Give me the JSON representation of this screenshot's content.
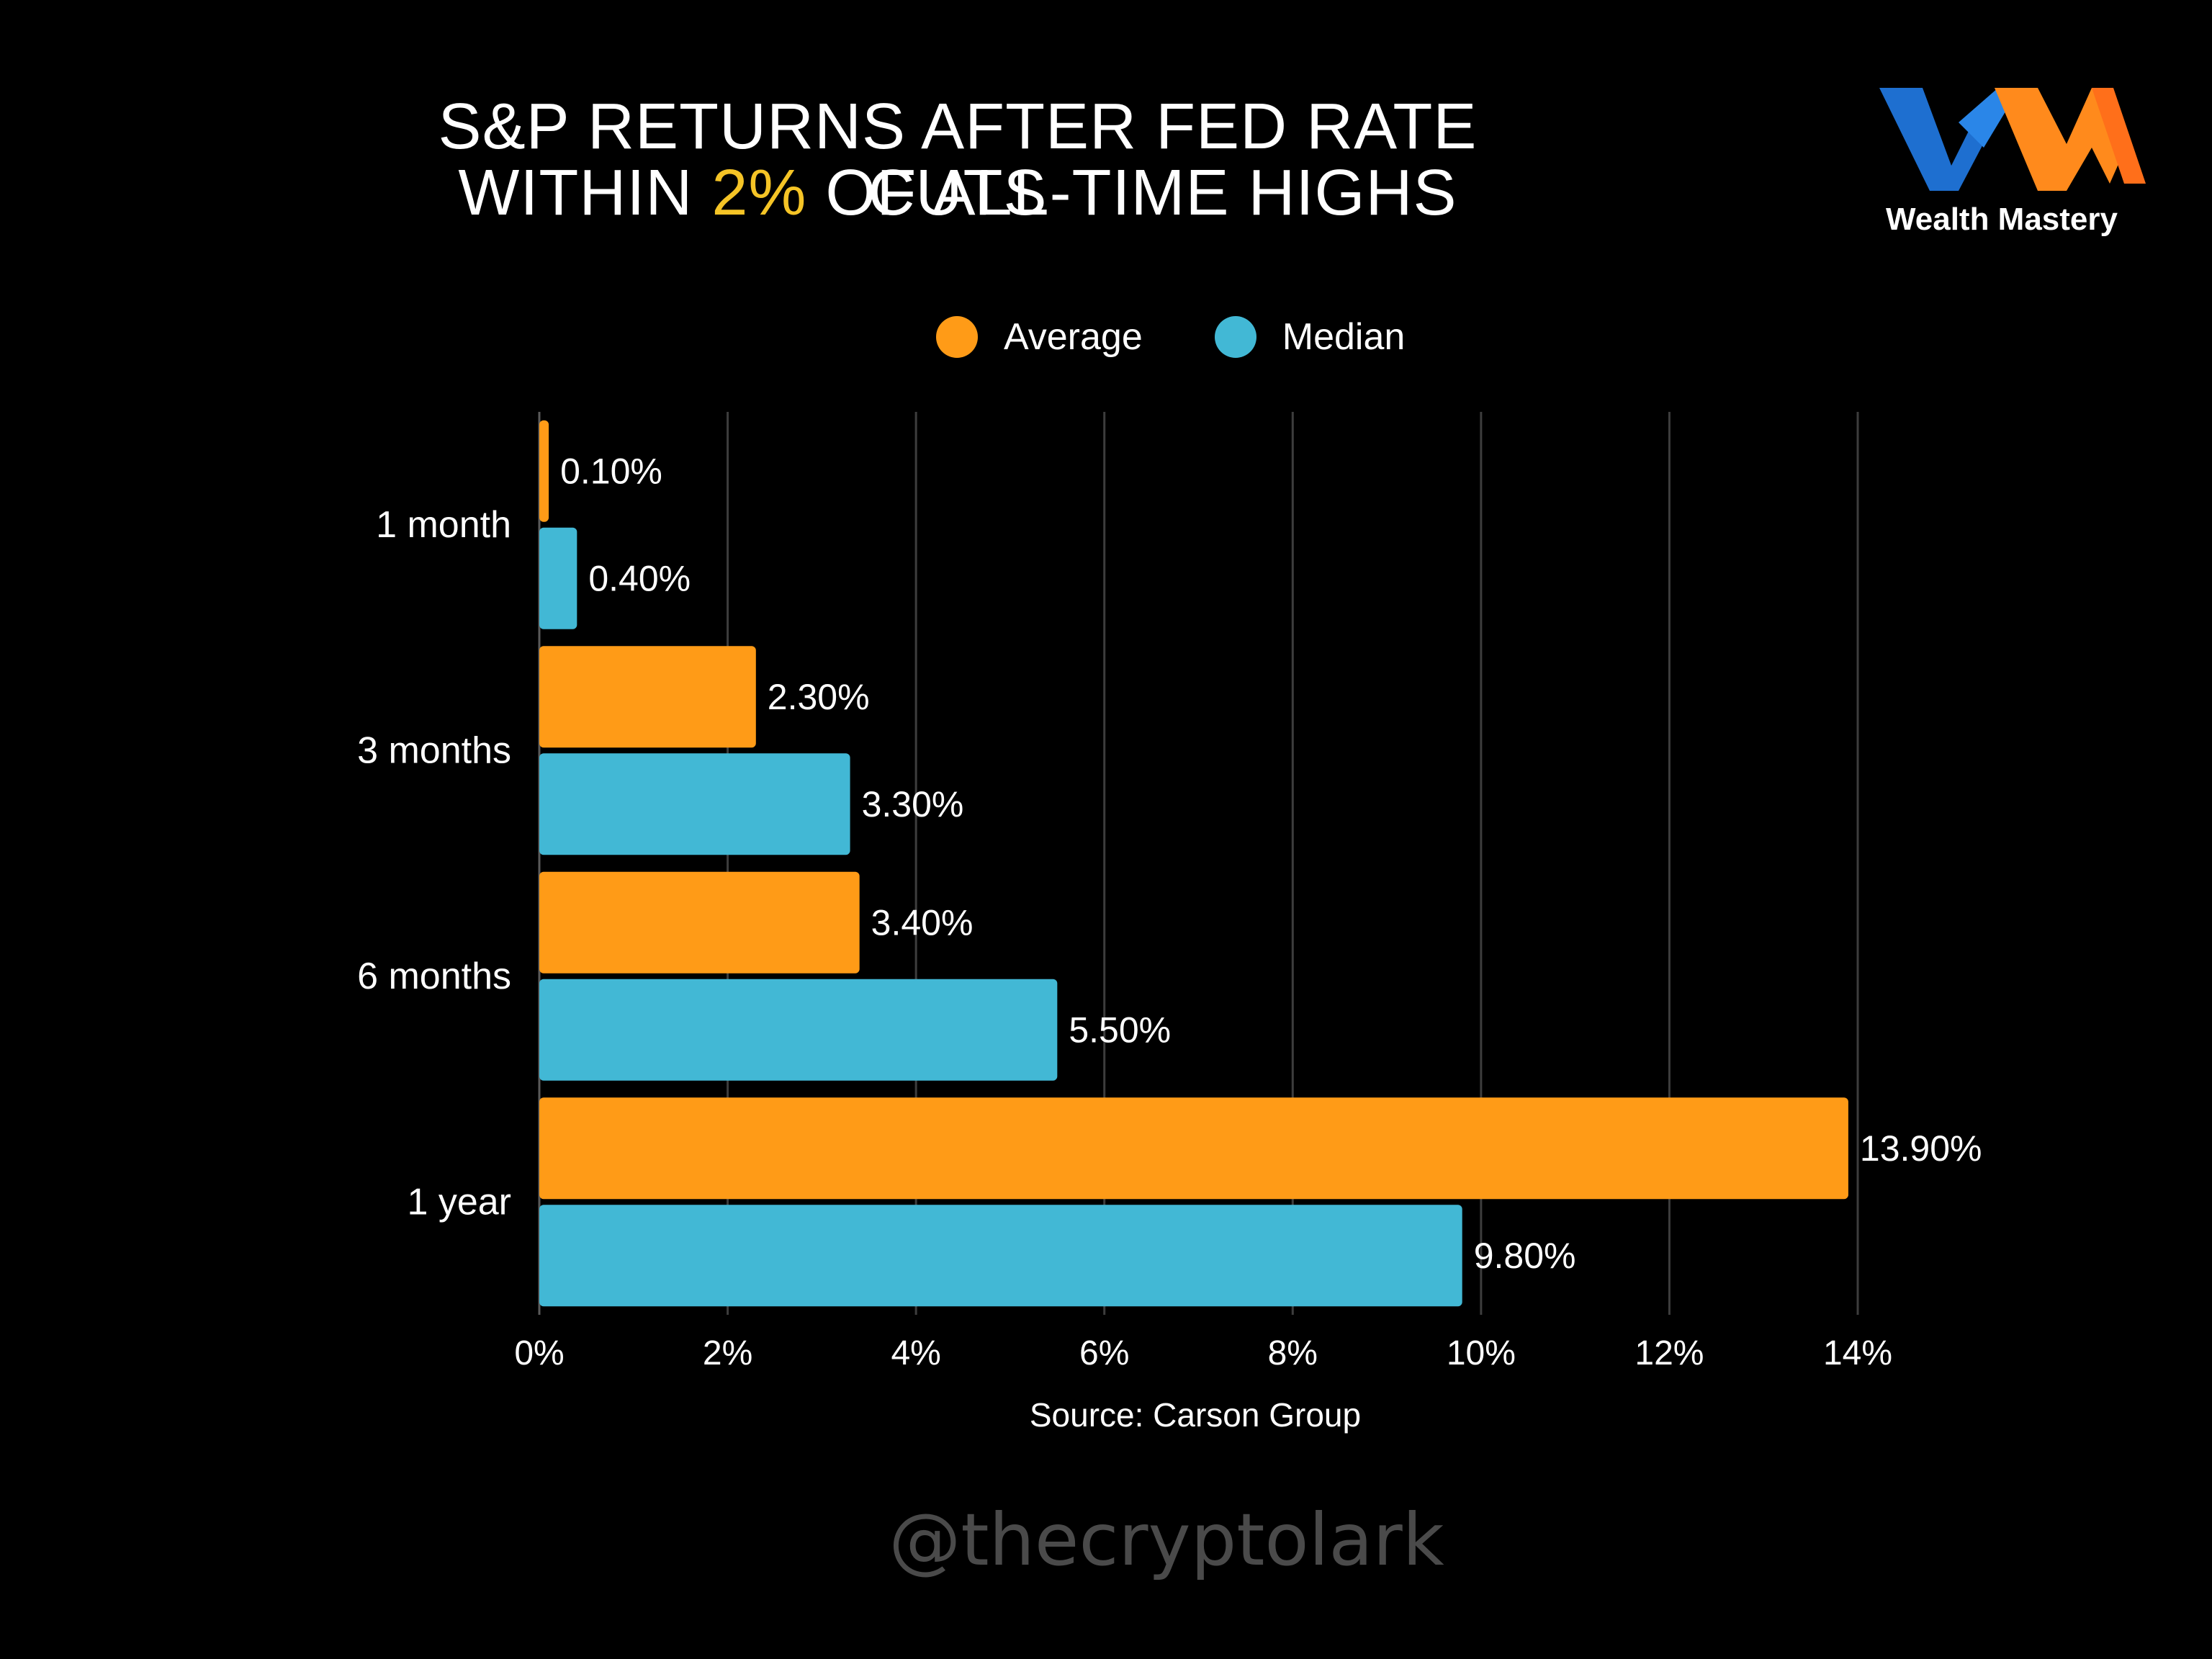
{
  "title": {
    "line1": "S&P RETURNS AFTER FED RATE CUTS",
    "line2_prefix": "WITHIN ",
    "line2_highlight": "2%",
    "line2_suffix": " OF ALL-TIME HIGHS"
  },
  "brand": {
    "name": "Wealth Mastery"
  },
  "colors": {
    "background": "#000000",
    "average": "#ff9b17",
    "median": "#42b8d5",
    "highlight": "#f5c426",
    "grid": "#3d3d3d",
    "logo_blue": "#1e6fd0",
    "logo_orange": "#ff8a1c"
  },
  "chart_data": {
    "type": "bar",
    "orientation": "horizontal",
    "categories": [
      "1 month",
      "3 months",
      "6 months",
      "1 year"
    ],
    "series": [
      {
        "name": "Average",
        "color": "#ff9b17",
        "values": [
          0.1,
          2.3,
          3.4,
          13.9
        ],
        "labels": [
          "0.10%",
          "2.30%",
          "3.40%",
          "13.90%"
        ]
      },
      {
        "name": "Median",
        "color": "#42b8d5",
        "values": [
          0.4,
          3.3,
          5.5,
          9.8
        ],
        "labels": [
          "0.40%",
          "3.30%",
          "5.50%",
          "9.80%"
        ]
      }
    ],
    "xlim": [
      0,
      14
    ],
    "xticks": [
      0,
      2,
      4,
      6,
      8,
      10,
      12,
      14
    ],
    "xtick_labels": [
      "0%",
      "2%",
      "4%",
      "6%",
      "8%",
      "10%",
      "12%",
      "14%"
    ],
    "grid": true,
    "legend_position": "top-center"
  },
  "source": "Source: Carson Group",
  "handle": "@thecryptolark"
}
